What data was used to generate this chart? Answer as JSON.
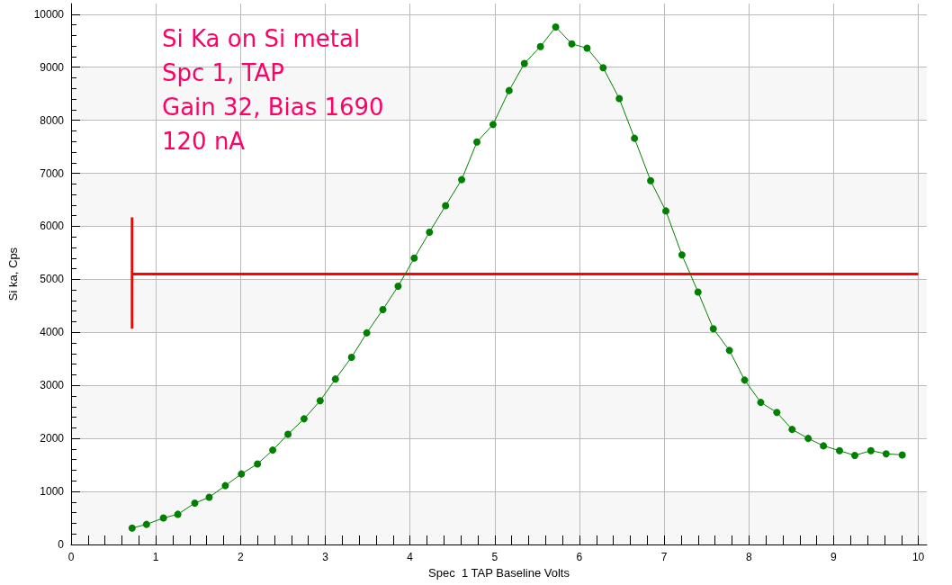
{
  "chart_data": {
    "type": "line",
    "xlabel": "Spec  1 TAP Baseline Volts",
    "ylabel": "Si ka, Cps",
    "annotations": [
      "Si Ka on Si metal",
      "Spc 1, TAP",
      "Gain 32, Bias 1690",
      "120 nA"
    ],
    "series": [
      {
        "color": "#008000",
        "marker": "circle",
        "x": [
          0.72,
          0.89,
          1.09,
          1.26,
          1.46,
          1.63,
          1.82,
          2.01,
          2.2,
          2.38,
          2.56,
          2.75,
          2.94,
          3.12,
          3.31,
          3.49,
          3.68,
          3.86,
          4.05,
          4.23,
          4.42,
          4.61,
          4.79,
          4.98,
          5.17,
          5.35,
          5.54,
          5.72,
          5.91,
          6.09,
          6.28,
          6.47,
          6.65,
          6.84,
          7.02,
          7.21,
          7.4,
          7.58,
          7.77,
          7.95,
          8.14,
          8.33,
          8.51,
          8.7,
          8.88,
          9.07,
          9.25,
          9.44,
          9.62,
          9.81
        ],
        "values": [
          310,
          380,
          500,
          570,
          780,
          890,
          1110,
          1330,
          1520,
          1780,
          2080,
          2370,
          2710,
          3120,
          3530,
          3990,
          4430,
          4870,
          5400,
          5890,
          6390,
          6880,
          7590,
          7920,
          8560,
          9070,
          9390,
          9760,
          9440,
          9360,
          8990,
          8410,
          7660,
          6860,
          6290,
          5460,
          4760,
          4070,
          3660,
          3100,
          2680,
          2490,
          2170,
          2000,
          1860,
          1770,
          1680,
          1770,
          1710,
          1690
        ]
      },
      {
        "color": "#ff0000",
        "marker": "none",
        "x": [
          0.72,
          10
        ],
        "values": [
          5100,
          5100
        ]
      },
      {
        "color": "#ff0000",
        "marker": "none",
        "x": [
          0.72,
          0.72
        ],
        "values": [
          4070,
          6170
        ]
      }
    ],
    "xlim": [
      0,
      10.1
    ],
    "xticks": [
      0,
      1,
      2,
      3,
      4,
      5,
      6,
      7,
      8,
      9,
      10
    ],
    "ylim": [
      0,
      10200
    ],
    "yticks": [
      0,
      1000,
      2000,
      3000,
      4000,
      5000,
      6000,
      7000,
      8000,
      9000,
      10000
    ],
    "grid": true,
    "line_style": "solid"
  }
}
